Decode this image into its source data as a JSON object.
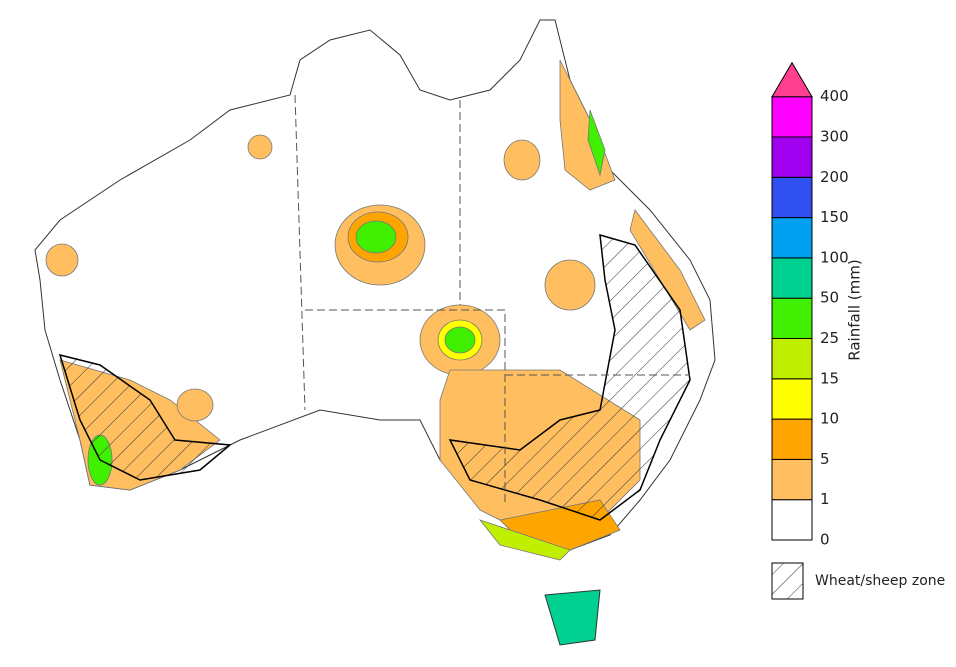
{
  "legend": {
    "title": "Rainfall (mm)",
    "ticks": [
      "0",
      "1",
      "5",
      "10",
      "15",
      "25",
      "50",
      "100",
      "150",
      "200",
      "300",
      "400"
    ],
    "colors": [
      "#ffffff",
      "#ffbf60",
      "#ffa500",
      "#ffff00",
      "#c0f000",
      "#40f000",
      "#00d090",
      "#00a0f0",
      "#3050f0",
      "#a000f0",
      "#ff00ff"
    ],
    "over_color": "#ff4090"
  },
  "zone_legend": "Wheat/sheep zone"
}
